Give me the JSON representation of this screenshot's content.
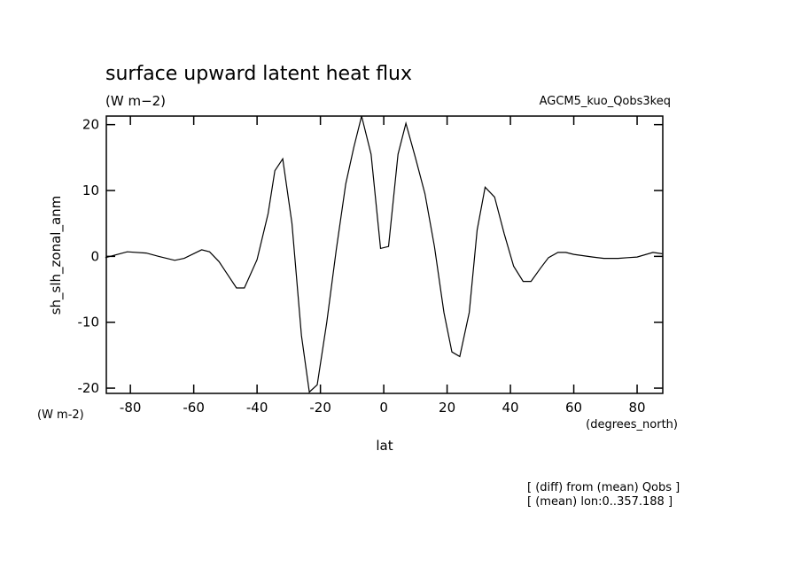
{
  "chart_data": {
    "type": "line",
    "title": "surface upward latent heat flux",
    "subtitle": "(W m−2)",
    "run_label": "AGCM5_kuo_Qobs3keq",
    "y_label": "sh_slh_zonal_anm",
    "y_unit": "(W m-2)",
    "x_label": "lat",
    "x_unit": "(degrees_north)",
    "notes": [
      "[ (diff) from (mean) Qobs ]",
      "[ (mean) lon:0..357.188 ]"
    ],
    "x": [
      -87.9,
      -81,
      -75,
      -71,
      -66,
      -63,
      -57.5,
      -55,
      -52,
      -46.5,
      -44,
      -40,
      -36.5,
      -34.4,
      -31.9,
      -29,
      -26,
      -23.5,
      -21,
      -18,
      -15,
      -12,
      -9.5,
      -7,
      -4,
      -1,
      1.5,
      4.5,
      7,
      10,
      13,
      16,
      19,
      21.5,
      24,
      27,
      29.5,
      32,
      35,
      38,
      41,
      44,
      46.5,
      49.5,
      52,
      55,
      57.5,
      60,
      66,
      69.5,
      74,
      77,
      80,
      85,
      87.9
    ],
    "series": [
      {
        "name": "sh_slh_zonal_anm",
        "color": "#000000",
        "values": [
          -0.2,
          0.7,
          0.5,
          0,
          -0.6,
          -0.3,
          1.0,
          0.7,
          -0.8,
          -4.8,
          -4.8,
          -0.5,
          6.5,
          13,
          14.8,
          5,
          -12,
          -20.6,
          -19.5,
          -10,
          1,
          11,
          16.5,
          21.3,
          15.5,
          1.2,
          1.5,
          15.5,
          20.2,
          15,
          9.5,
          1.5,
          -8.5,
          -14.5,
          -15.2,
          -8.5,
          4,
          10.5,
          9,
          3.5,
          -1.5,
          -3.8,
          -3.8,
          -1.8,
          -0.2,
          0.6,
          0.6,
          0.3,
          -0.1,
          -0.3,
          -0.3,
          -0.2,
          -0.1,
          0.6,
          0.4
        ]
      }
    ],
    "xlim": [
      -87.6,
      88.1
    ],
    "ylim": [
      -20.8,
      21.3
    ],
    "xticks": [
      -80,
      -60,
      -40,
      -20,
      0,
      20,
      40,
      60,
      80
    ],
    "yticks": [
      -20,
      -10,
      0,
      10,
      20
    ]
  }
}
